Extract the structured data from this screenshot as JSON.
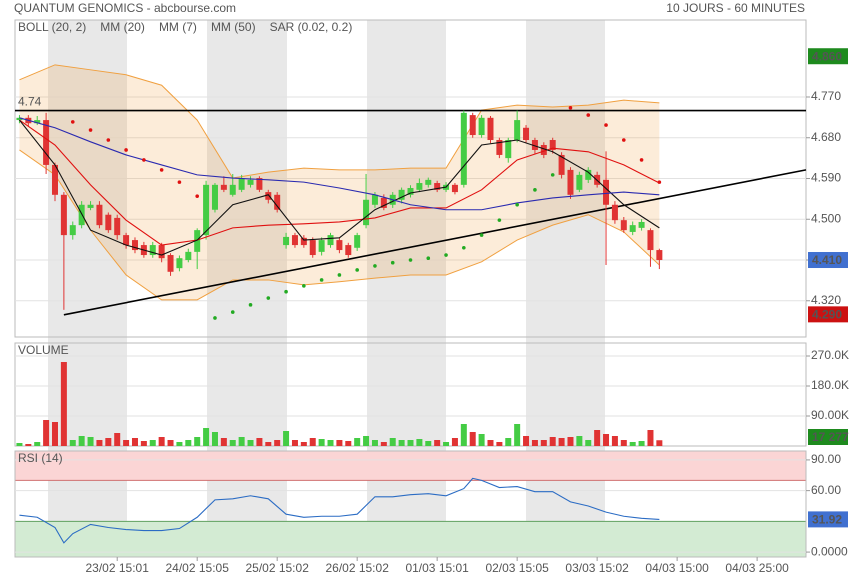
{
  "header": {
    "title": "QUANTUM GENOMICS - abcbourse.com",
    "period": "10 JOURS - 60 MINUTES"
  },
  "chart_data": [
    {
      "type": "candlestick",
      "up_color": "#44cc44",
      "down_color": "#e03333",
      "xlim": [
        -0.5,
        88.5
      ],
      "ylim": [
        4.24,
        4.94
      ],
      "yticks": [
        {
          "value": 4.32,
          "label": "4.320"
        },
        {
          "value": 4.41,
          "label": "4.410"
        },
        {
          "value": 4.5,
          "label": "4.500"
        },
        {
          "value": 4.59,
          "label": "4.590"
        },
        {
          "value": 4.68,
          "label": "4.680"
        },
        {
          "value": 4.77,
          "label": "4.770"
        }
      ],
      "open": [
        4.719,
        4.724,
        4.712,
        4.719,
        4.62,
        4.554,
        4.465,
        4.487,
        4.525,
        4.532,
        4.51,
        4.503,
        4.465,
        4.454,
        4.443,
        4.421,
        4.443,
        4.421,
        4.392,
        4.41,
        4.428,
        4.465,
        4.521,
        4.576,
        4.554,
        4.565,
        4.576,
        4.591,
        4.56,
        4.554,
        4.443,
        4.465,
        4.459,
        4.454,
        4.428,
        4.443,
        4.454,
        4.443,
        4.437,
        4.487,
        4.532,
        4.547,
        4.532,
        4.543,
        4.554,
        4.565,
        4.576,
        4.58,
        4.565,
        4.576,
        4.576,
        4.73,
        4.686,
        4.724,
        4.675,
        4.635,
        4.675,
        4.702,
        4.675,
        4.664,
        4.675,
        4.642,
        4.609,
        4.565,
        4.587,
        4.598,
        4.587,
        4.532,
        4.498,
        4.472,
        4.481,
        4.476,
        4.432
      ],
      "high": [
        4.73,
        4.73,
        4.728,
        4.735,
        4.625,
        4.56,
        4.495,
        4.54,
        4.54,
        4.54,
        4.515,
        4.51,
        4.47,
        4.46,
        4.45,
        4.45,
        4.448,
        4.425,
        4.42,
        4.435,
        4.48,
        4.585,
        4.58,
        4.595,
        4.6,
        4.598,
        4.595,
        4.595,
        4.565,
        4.56,
        4.47,
        4.47,
        4.465,
        4.46,
        4.46,
        4.47,
        4.46,
        4.448,
        4.47,
        4.6,
        4.56,
        4.555,
        4.56,
        4.57,
        4.575,
        4.59,
        4.592,
        4.585,
        4.582,
        4.58,
        4.74,
        4.735,
        4.73,
        4.728,
        4.68,
        4.68,
        4.74,
        4.708,
        4.68,
        4.67,
        4.68,
        4.648,
        4.615,
        4.605,
        4.615,
        4.605,
        4.65,
        4.54,
        4.505,
        4.495,
        4.5,
        4.48,
        4.435
      ],
      "low": [
        4.712,
        4.705,
        4.708,
        4.6,
        4.54,
        4.3,
        4.455,
        4.48,
        4.52,
        4.48,
        4.47,
        4.455,
        4.435,
        4.425,
        4.415,
        4.415,
        4.405,
        4.375,
        4.385,
        4.405,
        4.39,
        4.455,
        4.515,
        4.56,
        4.55,
        4.56,
        4.57,
        4.56,
        4.535,
        4.515,
        4.435,
        4.437,
        4.437,
        4.415,
        4.42,
        4.437,
        4.425,
        4.415,
        4.43,
        4.48,
        4.525,
        4.52,
        4.525,
        4.535,
        4.548,
        4.56,
        4.57,
        4.56,
        4.56,
        4.555,
        4.57,
        4.68,
        4.68,
        4.668,
        4.635,
        4.625,
        4.67,
        4.668,
        4.645,
        4.635,
        4.645,
        4.59,
        4.545,
        4.56,
        4.58,
        4.57,
        4.399,
        4.49,
        4.47,
        4.465,
        4.475,
        4.395,
        4.39
      ],
      "close": [
        4.724,
        4.712,
        4.719,
        4.62,
        4.554,
        4.465,
        4.487,
        4.532,
        4.532,
        4.487,
        4.476,
        4.465,
        4.443,
        4.432,
        4.421,
        4.443,
        4.414,
        4.384,
        4.414,
        4.428,
        4.476,
        4.576,
        4.576,
        4.565,
        4.576,
        4.591,
        4.587,
        4.565,
        4.543,
        4.521,
        4.461,
        4.443,
        4.443,
        4.421,
        4.454,
        4.465,
        4.432,
        4.421,
        4.465,
        4.543,
        4.554,
        4.525,
        4.554,
        4.565,
        4.569,
        4.58,
        4.587,
        4.565,
        4.576,
        4.56,
        4.735,
        4.686,
        4.724,
        4.675,
        4.642,
        4.675,
        4.719,
        4.675,
        4.653,
        4.642,
        4.653,
        4.598,
        4.554,
        4.598,
        4.609,
        4.576,
        4.532,
        4.498,
        4.476,
        4.487,
        4.494,
        4.432,
        4.41
      ],
      "overlays": [
        {
          "name": "BOLL (20, 2)",
          "kind": "band",
          "color": "#f0a040",
          "x": [
            0,
            4,
            8,
            12,
            16,
            20,
            24,
            28,
            32,
            36,
            40,
            44,
            48,
            52,
            56,
            60,
            64,
            68,
            72
          ],
          "upper": [
            4.808,
            4.841,
            4.83,
            4.819,
            4.796,
            4.719,
            4.591,
            4.604,
            4.613,
            4.609,
            4.609,
            4.613,
            4.613,
            4.741,
            4.752,
            4.748,
            4.752,
            4.763,
            4.757
          ],
          "lower": [
            4.653,
            4.598,
            4.476,
            4.377,
            4.322,
            4.322,
            4.366,
            4.366,
            4.355,
            4.362,
            4.37,
            4.377,
            4.377,
            4.406,
            4.454,
            4.487,
            4.51,
            4.472,
            4.399
          ]
        },
        {
          "name": "MM (20)",
          "kind": "line",
          "color": "#e01010",
          "x": [
            0,
            4,
            8,
            12,
            16,
            20,
            24,
            28,
            32,
            36,
            40,
            44,
            48,
            52,
            56,
            60,
            64,
            68,
            72
          ],
          "values": [
            4.719,
            4.664,
            4.576,
            4.498,
            4.443,
            4.454,
            4.481,
            4.487,
            4.49,
            4.494,
            4.503,
            4.525,
            4.525,
            4.565,
            4.631,
            4.657,
            4.649,
            4.62,
            4.58
          ]
        },
        {
          "name": "MM (7)",
          "kind": "line",
          "color": "#111111",
          "x": [
            0,
            4,
            8,
            12,
            16,
            20,
            24,
            28,
            32,
            36,
            40,
            44,
            48,
            52,
            56,
            60,
            64,
            68,
            72
          ],
          "values": [
            4.719,
            4.62,
            4.476,
            4.443,
            4.421,
            4.454,
            4.532,
            4.554,
            4.454,
            4.459,
            4.521,
            4.558,
            4.571,
            4.664,
            4.675,
            4.649,
            4.604,
            4.532,
            4.481
          ]
        },
        {
          "name": "MM (50)",
          "kind": "line",
          "color": "#2a2ab0",
          "x": [
            0,
            4,
            8,
            12,
            16,
            20,
            24,
            28,
            32,
            36,
            40,
            44,
            48,
            52,
            56,
            60,
            64,
            68,
            72
          ],
          "values": [
            4.724,
            4.702,
            4.671,
            4.642,
            4.62,
            4.598,
            4.591,
            4.587,
            4.582,
            4.569,
            4.554,
            4.532,
            4.521,
            4.521,
            4.536,
            4.547,
            4.554,
            4.56,
            4.554
          ]
        },
        {
          "name": "SAR (0.02, 0.2)",
          "kind": "dots",
          "color": "#e01010",
          "up_color": "#22aa22",
          "x": [
            6,
            8,
            10,
            12,
            14,
            16,
            18,
            20,
            22,
            24,
            26,
            28,
            30,
            32,
            34,
            36,
            38,
            40,
            42,
            44,
            46,
            48,
            50,
            52,
            54,
            56,
            58,
            60,
            62,
            64,
            66,
            68,
            70,
            72
          ],
          "values": [
            4.715,
            4.697,
            4.675,
            4.653,
            4.631,
            4.609,
            4.582,
            4.551,
            4.282,
            4.295,
            4.311,
            4.326,
            4.34,
            4.353,
            4.366,
            4.377,
            4.388,
            4.397,
            4.404,
            4.41,
            4.414,
            4.421,
            4.437,
            4.465,
            4.498,
            4.532,
            4.565,
            4.598,
            4.746,
            4.73,
            4.708,
            4.675,
            4.631,
            4.582
          ]
        }
      ],
      "hline": {
        "label": "4.74",
        "value": 4.74
      },
      "trendline": {
        "x": [
          5,
          88.5
        ],
        "y": [
          4.289,
          4.609
        ]
      },
      "price_labels": [
        {
          "value": 4.86,
          "label": "4.860",
          "color": "#1e8a1e"
        },
        {
          "value": 4.41,
          "label": "4.410",
          "color": "#4070d0"
        },
        {
          "value": 4.29,
          "label": "4.290",
          "color": "#cc1111"
        }
      ]
    },
    {
      "type": "bar",
      "title": "VOLUME",
      "xlim": [
        -0.5,
        88.5
      ],
      "ylim": [
        0,
        309000
      ],
      "yticks": [
        {
          "value": 90000,
          "label": "90.00K"
        },
        {
          "value": 180000,
          "label": "180.0K"
        },
        {
          "value": 270000,
          "label": "270.0K"
        }
      ],
      "values": [
        9000,
        6000,
        12000,
        78000,
        72000,
        252000,
        18000,
        30000,
        27000,
        18000,
        24000,
        39000,
        18000,
        24000,
        15000,
        18000,
        27000,
        18000,
        12000,
        18000,
        27000,
        54000,
        42000,
        24000,
        18000,
        27000,
        18000,
        24000,
        12000,
        18000,
        45000,
        18000,
        12000,
        24000,
        21000,
        18000,
        18000,
        15000,
        24000,
        30000,
        18000,
        12000,
        24000,
        18000,
        18000,
        21000,
        15000,
        18000,
        12000,
        24000,
        66000,
        42000,
        36000,
        18000,
        12000,
        24000,
        66000,
        30000,
        18000,
        18000,
        27000,
        24000,
        27000,
        30000,
        18000,
        48000,
        36000,
        30000,
        18000,
        12000,
        15000,
        48000,
        17277
      ],
      "last_value_label": "17 277",
      "label_color": "#1e8a1e"
    },
    {
      "type": "line",
      "title": "RSI (14)",
      "color": "#2b6cc4",
      "xlim": [
        -0.5,
        88.5
      ],
      "ylim": [
        -4.8,
        98.7
      ],
      "yticks": [
        {
          "value": 0,
          "label": "0.0000"
        },
        {
          "value": 60,
          "label": "60.00"
        },
        {
          "value": 90,
          "label": "90.00"
        }
      ],
      "overbought": 70,
      "oversold": 30,
      "x": [
        0,
        2,
        4,
        5,
        6,
        8,
        10,
        12,
        14,
        16,
        18,
        20,
        22,
        24,
        26,
        28,
        30,
        32,
        34,
        36,
        38,
        40,
        42,
        44,
        46,
        48,
        50,
        51,
        52,
        54,
        56,
        58,
        60,
        62,
        64,
        66,
        68,
        70,
        72
      ],
      "values": [
        36,
        34,
        24,
        9,
        18,
        27,
        24,
        22,
        21,
        21,
        23,
        34,
        51,
        52,
        55,
        52,
        37,
        34,
        35,
        35,
        37,
        54,
        54,
        56,
        57,
        55,
        62,
        72,
        70,
        63,
        64,
        59,
        59,
        49,
        45,
        39,
        35,
        33,
        31.92
      ],
      "xticks": [
        {
          "value": 11,
          "label": "23/02 15:01"
        },
        {
          "value": 20,
          "label": "24/02 15:05"
        },
        {
          "value": 29,
          "label": "25/02 15:02"
        },
        {
          "value": 38,
          "label": "26/02 15:02"
        },
        {
          "value": 47,
          "label": "01/03 15:01"
        },
        {
          "value": 56,
          "label": "02/03 15:05"
        },
        {
          "value": 65,
          "label": "03/03 15:02"
        },
        {
          "value": 74,
          "label": "04/03 15:00"
        },
        {
          "value": 83,
          "label": "04/03 25:00"
        }
      ]
    }
  ]
}
